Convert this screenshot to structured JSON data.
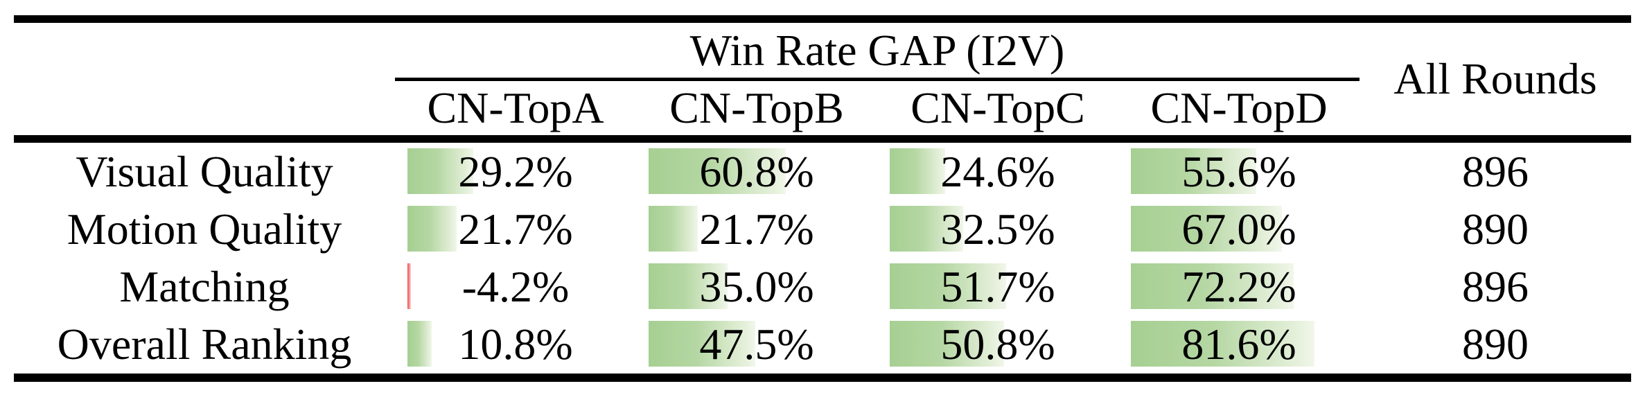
{
  "table": {
    "title": "Win Rate GAP (I2V)",
    "all_rounds_header": "All Rounds",
    "columns": [
      "CN-TopA",
      "CN-TopB",
      "CN-TopC",
      "CN-TopD"
    ],
    "rows": [
      {
        "label": "Visual Quality",
        "cells": [
          {
            "text": "29.2%",
            "value": 29.2
          },
          {
            "text": "60.8%",
            "value": 60.8
          },
          {
            "text": "24.6%",
            "value": 24.6
          },
          {
            "text": "55.6%",
            "value": 55.6
          }
        ],
        "all_rounds": "896"
      },
      {
        "label": "Motion Quality",
        "cells": [
          {
            "text": "21.7%",
            "value": 21.7
          },
          {
            "text": "21.7%",
            "value": 21.7
          },
          {
            "text": "32.5%",
            "value": 32.5
          },
          {
            "text": "67.0%",
            "value": 67.0
          }
        ],
        "all_rounds": "890"
      },
      {
        "label": "Matching",
        "cells": [
          {
            "text": "-4.2%",
            "value": -4.2
          },
          {
            "text": "35.0%",
            "value": 35.0
          },
          {
            "text": "51.7%",
            "value": 51.7
          },
          {
            "text": "72.2%",
            "value": 72.2
          }
        ],
        "all_rounds": "896"
      },
      {
        "label": "Overall Ranking",
        "cells": [
          {
            "text": "10.8%",
            "value": 10.8
          },
          {
            "text": "47.5%",
            "value": 47.5
          },
          {
            "text": "50.8%",
            "value": 50.8
          },
          {
            "text": "81.6%",
            "value": 81.6
          }
        ],
        "all_rounds": "890"
      }
    ],
    "colors": {
      "bar_positive": "#a6cf92",
      "bar_negative": "#ee4f4f",
      "text": "#000000",
      "rule": "#000000",
      "background": "#ffffff"
    }
  },
  "chart_data": {
    "type": "table",
    "title": "Win Rate GAP (I2V)",
    "row_labels": [
      "Visual Quality",
      "Motion Quality",
      "Matching",
      "Overall Ranking"
    ],
    "columns": [
      "CN-TopA",
      "CN-TopB",
      "CN-TopC",
      "CN-TopD"
    ],
    "series": [
      {
        "name": "Visual Quality",
        "values": [
          29.2,
          60.8,
          24.6,
          55.6
        ]
      },
      {
        "name": "Motion Quality",
        "values": [
          21.7,
          21.7,
          32.5,
          67.0
        ]
      },
      {
        "name": "Matching",
        "values": [
          -4.2,
          35.0,
          51.7,
          72.2
        ]
      },
      {
        "name": "Overall Ranking",
        "values": [
          10.8,
          47.5,
          50.8,
          81.6
        ]
      }
    ],
    "all_rounds": [
      896,
      890,
      896,
      890
    ],
    "layout_hints": {
      "bars": "in-cell horizontal bars proportional to percent value",
      "negative_bar_color": "red",
      "positive_bar_color": "green gradient fading right"
    }
  }
}
